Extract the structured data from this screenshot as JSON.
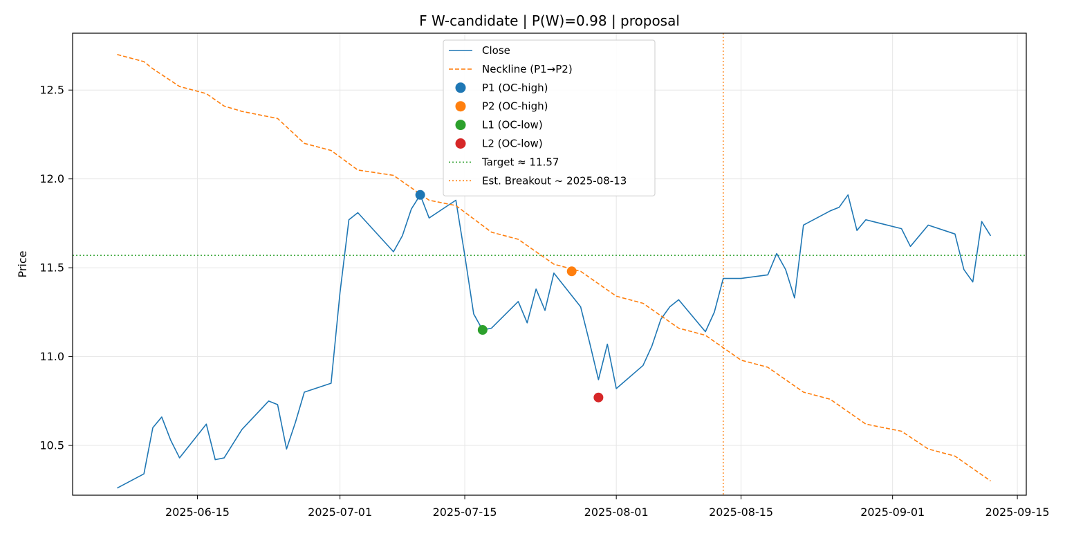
{
  "chart_data": {
    "type": "line",
    "title": "F W-candidate | P(W)=0.98 | proposal",
    "xlabel": "",
    "ylabel": "Price",
    "xlim": [
      "2025-06-01",
      "2025-09-16"
    ],
    "ylim": [
      10.22,
      12.82
    ],
    "grid": true,
    "legend_position": "top-center",
    "x_ticks": [
      "2025-06-15",
      "2025-07-01",
      "2025-07-15",
      "2025-08-01",
      "2025-08-15",
      "2025-09-01",
      "2025-09-15"
    ],
    "y_ticks": [
      10.5,
      11.0,
      11.5,
      12.0,
      12.5
    ],
    "y_tick_labels": [
      "10.5",
      "11.0",
      "11.5",
      "12.0",
      "12.5"
    ],
    "series": [
      {
        "name": "Close",
        "style": "solid",
        "color": "#1f77b4",
        "points": [
          [
            "2025-06-06",
            10.26
          ],
          [
            "2025-06-09",
            10.34
          ],
          [
            "2025-06-10",
            10.6
          ],
          [
            "2025-06-11",
            10.66
          ],
          [
            "2025-06-12",
            10.53
          ],
          [
            "2025-06-13",
            10.43
          ],
          [
            "2025-06-16",
            10.62
          ],
          [
            "2025-06-17",
            10.42
          ],
          [
            "2025-06-18",
            10.43
          ],
          [
            "2025-06-20",
            10.59
          ],
          [
            "2025-06-23",
            10.75
          ],
          [
            "2025-06-24",
            10.73
          ],
          [
            "2025-06-25",
            10.48
          ],
          [
            "2025-06-26",
            10.63
          ],
          [
            "2025-06-27",
            10.8
          ],
          [
            "2025-06-30",
            10.85
          ],
          [
            "2025-07-01",
            11.36
          ],
          [
            "2025-07-02",
            11.77
          ],
          [
            "2025-07-03",
            11.81
          ],
          [
            "2025-07-07",
            11.59
          ],
          [
            "2025-07-08",
            11.68
          ],
          [
            "2025-07-09",
            11.83
          ],
          [
            "2025-07-10",
            11.91
          ],
          [
            "2025-07-11",
            11.78
          ],
          [
            "2025-07-14",
            11.88
          ],
          [
            "2025-07-15",
            11.57
          ],
          [
            "2025-07-16",
            11.24
          ],
          [
            "2025-07-17",
            11.15
          ],
          [
            "2025-07-18",
            11.16
          ],
          [
            "2025-07-21",
            11.31
          ],
          [
            "2025-07-22",
            11.19
          ],
          [
            "2025-07-23",
            11.38
          ],
          [
            "2025-07-24",
            11.26
          ],
          [
            "2025-07-25",
            11.47
          ],
          [
            "2025-07-28",
            11.28
          ],
          [
            "2025-07-29",
            11.08
          ],
          [
            "2025-07-30",
            10.87
          ],
          [
            "2025-07-31",
            11.07
          ],
          [
            "2025-08-01",
            10.82
          ],
          [
            "2025-08-04",
            10.95
          ],
          [
            "2025-08-05",
            11.06
          ],
          [
            "2025-08-06",
            11.21
          ],
          [
            "2025-08-07",
            11.28
          ],
          [
            "2025-08-08",
            11.32
          ],
          [
            "2025-08-11",
            11.14
          ],
          [
            "2025-08-12",
            11.25
          ],
          [
            "2025-08-13",
            11.44
          ],
          [
            "2025-08-15",
            11.44
          ],
          [
            "2025-08-18",
            11.46
          ],
          [
            "2025-08-19",
            11.58
          ],
          [
            "2025-08-20",
            11.49
          ],
          [
            "2025-08-21",
            11.33
          ],
          [
            "2025-08-22",
            11.74
          ],
          [
            "2025-08-25",
            11.82
          ],
          [
            "2025-08-26",
            11.84
          ],
          [
            "2025-08-27",
            11.91
          ],
          [
            "2025-08-28",
            11.71
          ],
          [
            "2025-08-29",
            11.77
          ],
          [
            "2025-09-02",
            11.72
          ],
          [
            "2025-09-03",
            11.62
          ],
          [
            "2025-09-05",
            11.74
          ],
          [
            "2025-09-08",
            11.69
          ],
          [
            "2025-09-09",
            11.49
          ],
          [
            "2025-09-10",
            11.42
          ],
          [
            "2025-09-11",
            11.76
          ],
          [
            "2025-09-12",
            11.68
          ]
        ]
      },
      {
        "name": "Neckline (P1→P2)",
        "style": "dashed",
        "color": "#ff7f0e",
        "points": [
          [
            "2025-06-06",
            12.7
          ],
          [
            "2025-06-09",
            12.66
          ],
          [
            "2025-06-10",
            12.62
          ],
          [
            "2025-06-13",
            12.52
          ],
          [
            "2025-06-16",
            12.48
          ],
          [
            "2025-06-18",
            12.41
          ],
          [
            "2025-06-20",
            12.38
          ],
          [
            "2025-06-24",
            12.34
          ],
          [
            "2025-06-27",
            12.2
          ],
          [
            "2025-06-30",
            12.16
          ],
          [
            "2025-07-03",
            12.05
          ],
          [
            "2025-07-07",
            12.02
          ],
          [
            "2025-07-11",
            11.88
          ],
          [
            "2025-07-14",
            11.85
          ],
          [
            "2025-07-18",
            11.7
          ],
          [
            "2025-07-21",
            11.66
          ],
          [
            "2025-07-25",
            11.52
          ],
          [
            "2025-07-28",
            11.48
          ],
          [
            "2025-08-01",
            11.34
          ],
          [
            "2025-08-04",
            11.3
          ],
          [
            "2025-08-08",
            11.16
          ],
          [
            "2025-08-11",
            11.12
          ],
          [
            "2025-08-15",
            10.98
          ],
          [
            "2025-08-18",
            10.94
          ],
          [
            "2025-08-22",
            10.8
          ],
          [
            "2025-08-25",
            10.76
          ],
          [
            "2025-08-29",
            10.62
          ],
          [
            "2025-09-02",
            10.58
          ],
          [
            "2025-09-05",
            10.48
          ],
          [
            "2025-09-08",
            10.44
          ],
          [
            "2025-09-12",
            10.3
          ]
        ]
      }
    ],
    "markers": [
      {
        "name": "P1 (OC-high)",
        "x": "2025-07-10",
        "y": 11.91,
        "color": "#1f77b4"
      },
      {
        "name": "P2 (OC-high)",
        "x": "2025-07-27",
        "y": 11.48,
        "color": "#ff7f0e"
      },
      {
        "name": "L1 (OC-low)",
        "x": "2025-07-17",
        "y": 11.15,
        "color": "#2ca02c"
      },
      {
        "name": "L2 (OC-low)",
        "x": "2025-07-30",
        "y": 10.77,
        "color": "#d62728"
      }
    ],
    "hlines": [
      {
        "name": "Target ≈ 11.57",
        "y": 11.57,
        "color": "#2ca02c",
        "style": "dotted"
      }
    ],
    "vlines": [
      {
        "name": "Est. Breakout ~ 2025-08-13",
        "x": "2025-08-13",
        "color": "#ff7f0e",
        "style": "dotted"
      }
    ],
    "legend": [
      {
        "label": "Close",
        "kind": "line",
        "style": "solid",
        "color": "#1f77b4"
      },
      {
        "label": "Neckline (P1→P2)",
        "kind": "line",
        "style": "dashed",
        "color": "#ff7f0e"
      },
      {
        "label": "P1 (OC-high)",
        "kind": "marker",
        "color": "#1f77b4"
      },
      {
        "label": "P2 (OC-high)",
        "kind": "marker",
        "color": "#ff7f0e"
      },
      {
        "label": "L1 (OC-low)",
        "kind": "marker",
        "color": "#2ca02c"
      },
      {
        "label": "L2 (OC-low)",
        "kind": "marker",
        "color": "#d62728"
      },
      {
        "label": "Target ≈ 11.57",
        "kind": "line",
        "style": "dotted",
        "color": "#2ca02c"
      },
      {
        "label": "Est. Breakout ~ 2025-08-13",
        "kind": "line",
        "style": "dotted",
        "color": "#ff7f0e"
      }
    ]
  }
}
